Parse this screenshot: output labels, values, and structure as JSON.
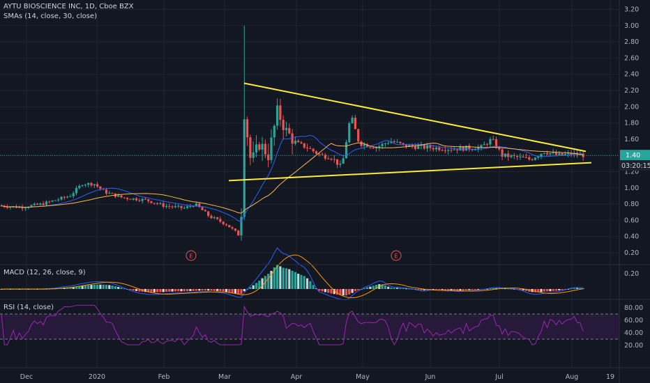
{
  "header": {
    "title": "AYTU BIOSCIENCE INC, 1D, Cboe BZX",
    "sma_label": "SMAs (14, close, 30, close)"
  },
  "panes": {
    "macd_label": "MACD (12, 26, close, 9)",
    "rsi_label": "RSI (14, close)"
  },
  "price_scale": {
    "ticks": [
      "3.20",
      "3.00",
      "2.80",
      "2.60",
      "2.40",
      "2.20",
      "2.00",
      "1.80",
      "1.60",
      "1.40",
      "1.20",
      "1.00",
      "0.80",
      "0.60",
      "0.40",
      "0.20"
    ],
    "current_price_label": "1.40",
    "countdown_label": "03:20:15"
  },
  "macd_scale": {
    "ticks": [
      "0.20"
    ]
  },
  "rsi_scale": {
    "ticks": [
      "80.00",
      "60.00",
      "40.00",
      "20.00"
    ]
  },
  "time_axis": {
    "labels": [
      "Dec",
      "2020",
      "Feb",
      "Mar",
      "Apr",
      "May",
      "Jun",
      "Jul",
      "Aug",
      "19"
    ]
  },
  "earnings_markers": [
    "E",
    "E"
  ],
  "colors": {
    "background": "#131722",
    "up": "#26a69a",
    "down": "#ef5350",
    "sma14": "#2962ff",
    "sma30": "#ffb74d",
    "trendline": "#ffeb3b",
    "rsi": "#9c27b0",
    "macd": "#2962ff",
    "signal": "#ff9800"
  },
  "chart_data": [
    {
      "type": "candlestick",
      "title": "AYTU BIOSCIENCE INC, 1D, Cboe BZX",
      "ylim": [
        0.1,
        3.3
      ],
      "x_range": [
        "Nov 2019",
        "Aug 2020"
      ],
      "key_points": [
        {
          "date": "Nov",
          "close": 0.78
        },
        {
          "date": "Jan",
          "close": 1.05
        },
        {
          "date": "Feb",
          "close": 0.75
        },
        {
          "date": "early Mar",
          "low": 0.35
        },
        {
          "date": "mid Mar",
          "high": 3.0
        },
        {
          "date": "late Mar",
          "close": 1.95
        },
        {
          "date": "late Apr",
          "close": 1.9
        },
        {
          "date": "Aug",
          "close": 1.4
        }
      ],
      "last_price": 1.4,
      "series": [
        {
          "name": "SMA 14"
        },
        {
          "name": "SMA 30"
        }
      ],
      "annotations": [
        {
          "type": "trendline",
          "from": {
            "date": "mid Mar",
            "value": 2.29
          },
          "to": {
            "date": "Aug",
            "value": 1.45
          }
        },
        {
          "type": "trendline",
          "from": {
            "date": "mid Mar",
            "value": 1.09
          },
          "to": {
            "date": "Aug",
            "value": 1.31
          }
        }
      ]
    },
    {
      "type": "line",
      "title": "MACD (12, 26, close, 9)",
      "ylim": [
        -0.05,
        0.3
      ]
    },
    {
      "type": "line",
      "title": "RSI (14, close)",
      "ylim": [
        20,
        85
      ],
      "bands": [
        70,
        30
      ],
      "last_value": 48
    }
  ]
}
